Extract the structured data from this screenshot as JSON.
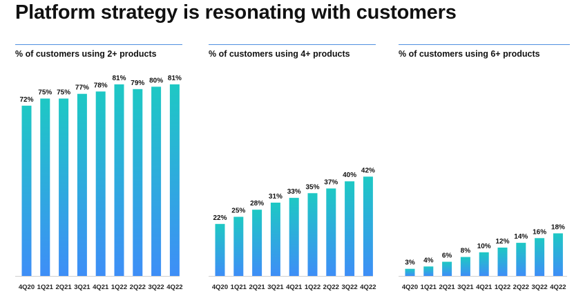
{
  "title": "Platform strategy is resonating with customers",
  "colors": {
    "bar_top": "#1ec8c4",
    "bar_bottom": "#3e8ef7",
    "rule": "#4f8fe0"
  },
  "chart_data": [
    {
      "type": "bar",
      "title": "% of customers using 2+ products",
      "categories": [
        "4Q20",
        "1Q21",
        "2Q21",
        "3Q21",
        "4Q21",
        "1Q22",
        "2Q22",
        "3Q22",
        "4Q22"
      ],
      "values": [
        72,
        75,
        75,
        77,
        78,
        81,
        79,
        80,
        81
      ],
      "labels": [
        "72%",
        "75%",
        "75%",
        "77%",
        "78%",
        "81%",
        "79%",
        "80%",
        "81%"
      ],
      "unit": "%",
      "ylim": [
        0,
        81
      ]
    },
    {
      "type": "bar",
      "title": "% of customers using 4+ products",
      "categories": [
        "4Q20",
        "1Q21",
        "2Q21",
        "3Q21",
        "4Q21",
        "1Q22",
        "2Q22",
        "3Q22",
        "4Q22"
      ],
      "values": [
        22,
        25,
        28,
        31,
        33,
        35,
        37,
        40,
        42
      ],
      "labels": [
        "22%",
        "25%",
        "28%",
        "31%",
        "33%",
        "35%",
        "37%",
        "40%",
        "42%"
      ],
      "unit": "%",
      "ylim": [
        0,
        81
      ]
    },
    {
      "type": "bar",
      "title": "% of customers using 6+ products",
      "categories": [
        "4Q20",
        "1Q21",
        "2Q21",
        "3Q21",
        "4Q21",
        "1Q22",
        "2Q22",
        "3Q22",
        "4Q22"
      ],
      "values": [
        3,
        4,
        6,
        8,
        10,
        12,
        14,
        16,
        18
      ],
      "labels": [
        "3%",
        "4%",
        "6%",
        "8%",
        "10%",
        "12%",
        "14%",
        "16%",
        "18%"
      ],
      "unit": "%",
      "ylim": [
        0,
        81
      ]
    }
  ]
}
